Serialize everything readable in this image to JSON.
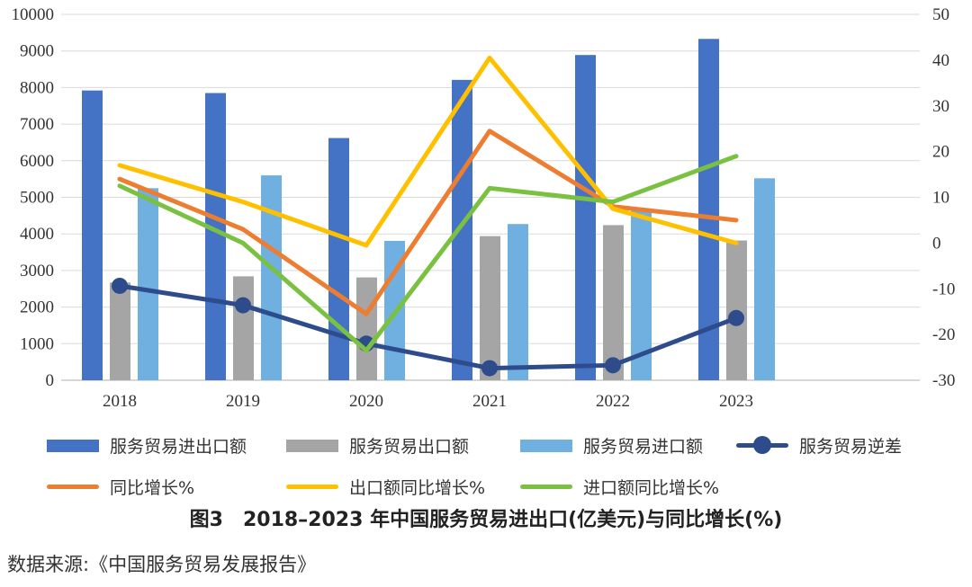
{
  "chart_data": {
    "type": "bar",
    "categories": [
      "2018",
      "2019",
      "2020",
      "2021",
      "2022",
      "2023"
    ],
    "y_left": {
      "ticks": [
        "0",
        "1000",
        "2000",
        "3000",
        "4000",
        "5000",
        "6000",
        "7000",
        "8000",
        "9000",
        "10000"
      ],
      "ylim": [
        0,
        10000
      ]
    },
    "y_right": {
      "ticks": [
        "50",
        "40",
        "30",
        "20",
        "10",
        "0",
        "-10",
        "-20",
        "-30"
      ],
      "ylim": [
        -30,
        50
      ]
    },
    "grid": true,
    "bar_series": [
      {
        "name": "服务贸易进出口额",
        "color": "#4472C4",
        "values": [
          7920,
          7850,
          6620,
          8210,
          8890,
          9330
        ]
      },
      {
        "name": "服务贸易出口额",
        "color": "#A5A5A5",
        "values": [
          2670,
          2840,
          2810,
          3940,
          4240,
          3820
        ]
      },
      {
        "name": "服务贸易进口额",
        "color": "#6FB0E0",
        "values": [
          5250,
          5600,
          3810,
          4270,
          4650,
          5520
        ]
      }
    ],
    "line_series": [
      {
        "name": "服务贸易逆差",
        "axis": "left",
        "color": "#2E4C8C",
        "markers": true,
        "values": [
          2580,
          2050,
          1000,
          330,
          410,
          1700
        ]
      },
      {
        "name": "同比增长%",
        "axis": "right",
        "color": "#ED7D31",
        "markers": false,
        "values": [
          14,
          3,
          -15.5,
          24.5,
          8,
          5
        ]
      },
      {
        "name": "出口额同比增长%",
        "axis": "right",
        "color": "#FFC000",
        "markers": false,
        "values": [
          17,
          9,
          -0.5,
          40.5,
          7.5,
          0
        ]
      },
      {
        "name": "进口额同比增长%",
        "axis": "right",
        "color": "#7AC142",
        "markers": false,
        "values": [
          12.5,
          0,
          -23.5,
          12,
          9,
          19
        ]
      }
    ],
    "legend_position": "bottom"
  },
  "legend": {
    "bar1": "服务贸易进出口额",
    "bar2": "服务贸易出口额",
    "bar3": "服务贸易进口额",
    "deficit": "服务贸易逆差",
    "growth": "同比增长%",
    "export_growth": "出口额同比增长%",
    "import_growth": "进口额同比增长%"
  },
  "caption": "图3　2018–2023 年中国服务贸易进出口(亿美元)与同比增长(%)",
  "source": "数据来源:《中国服务贸易发展报告》"
}
